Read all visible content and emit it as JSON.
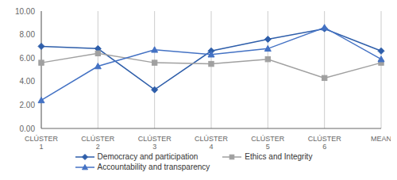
{
  "chart_data": {
    "type": "line",
    "categories": [
      "CLÚSTER\n1",
      "CLÚSTER\n2",
      "CLÚSTER\n3",
      "CLÚSTER\n4",
      "CLÚSTER\n5",
      "CLÚSTER\n6",
      "MEAN"
    ],
    "series": [
      {
        "name": "Democracy and participation",
        "color": "#2E5EAA",
        "marker": "diamond",
        "values": [
          7.0,
          6.8,
          3.3,
          6.6,
          7.6,
          8.5,
          6.6
        ]
      },
      {
        "name": "Ethics and Integrity",
        "color": "#A0A0A0",
        "marker": "square",
        "values": [
          5.6,
          6.4,
          5.6,
          5.5,
          5.9,
          4.3,
          5.6
        ]
      },
      {
        "name": "Accountability and transparency",
        "color": "#4472C4",
        "marker": "triangle",
        "values": [
          2.4,
          5.3,
          6.7,
          6.3,
          6.8,
          8.6,
          5.9
        ]
      }
    ],
    "ylim": [
      0.0,
      10.0
    ],
    "yticks": [
      {
        "value": 0,
        "label": "0.00"
      },
      {
        "value": 2,
        "label": "2.00"
      },
      {
        "value": 4,
        "label": "4.00"
      },
      {
        "value": 6,
        "label": "6.00"
      },
      {
        "value": 8,
        "label": "8.00"
      },
      {
        "value": 10,
        "label": "10.00"
      }
    ],
    "grid": true,
    "legend": "bottom"
  }
}
